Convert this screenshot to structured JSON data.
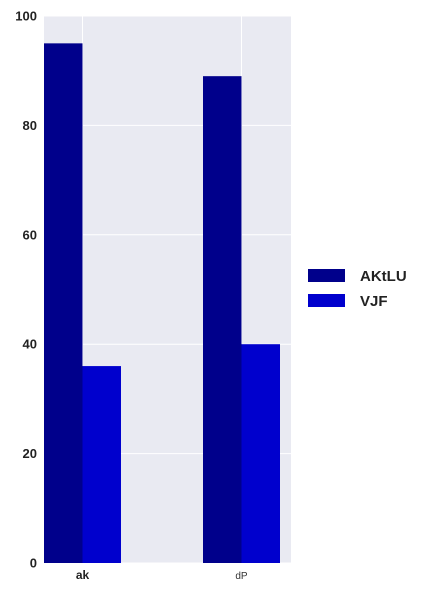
{
  "chart_data": {
    "type": "bar",
    "categories": [
      "ak",
      "dP"
    ],
    "series": [
      {
        "name": "AKtLU",
        "values": [
          95,
          89
        ],
        "color": "#00008b"
      },
      {
        "name": "VJF",
        "values": [
          36,
          40
        ],
        "color": "#0000cd"
      }
    ],
    "ylim": [
      0,
      100
    ],
    "yticks": [
      0,
      20,
      40,
      60,
      80,
      100
    ],
    "grid": true,
    "legend_position": "right",
    "background": "#e9eaf2"
  }
}
